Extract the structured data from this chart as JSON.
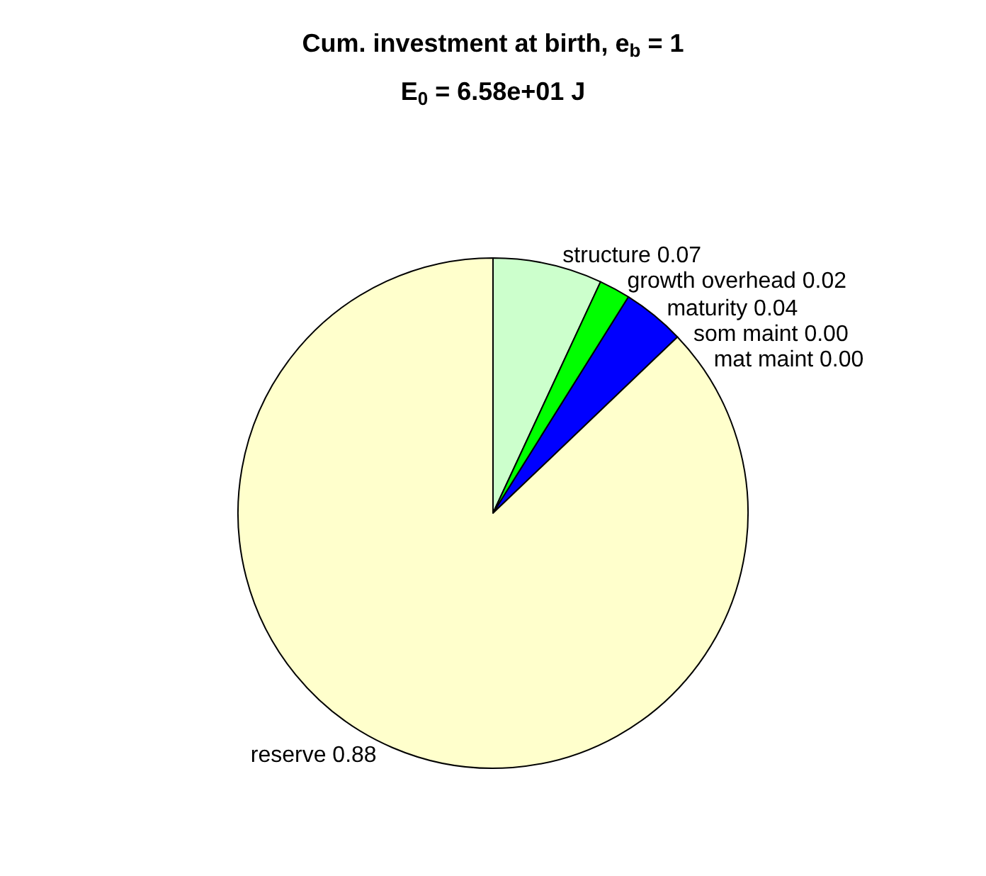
{
  "chart_data": {
    "type": "pie",
    "title": "Cum. investment at birth, e$_{b}$ = 1",
    "subtitle": "E$_{0}$ = 6.58e+01 J",
    "categories": [
      "structure",
      "growth overhead",
      "maturity",
      "som maint",
      "mat maint",
      "reserve"
    ],
    "values": [
      0.07,
      0.02,
      0.04,
      0.0,
      0.0,
      0.88
    ],
    "value_labels": [
      "0.07",
      "0.02",
      "0.04",
      "0.00",
      "0.00",
      "0.88"
    ],
    "colors": [
      "#ccffcc",
      "#00ff00",
      "#0000ff",
      "#000000",
      "#ff0000",
      "#ffffcc"
    ],
    "legend": false
  }
}
